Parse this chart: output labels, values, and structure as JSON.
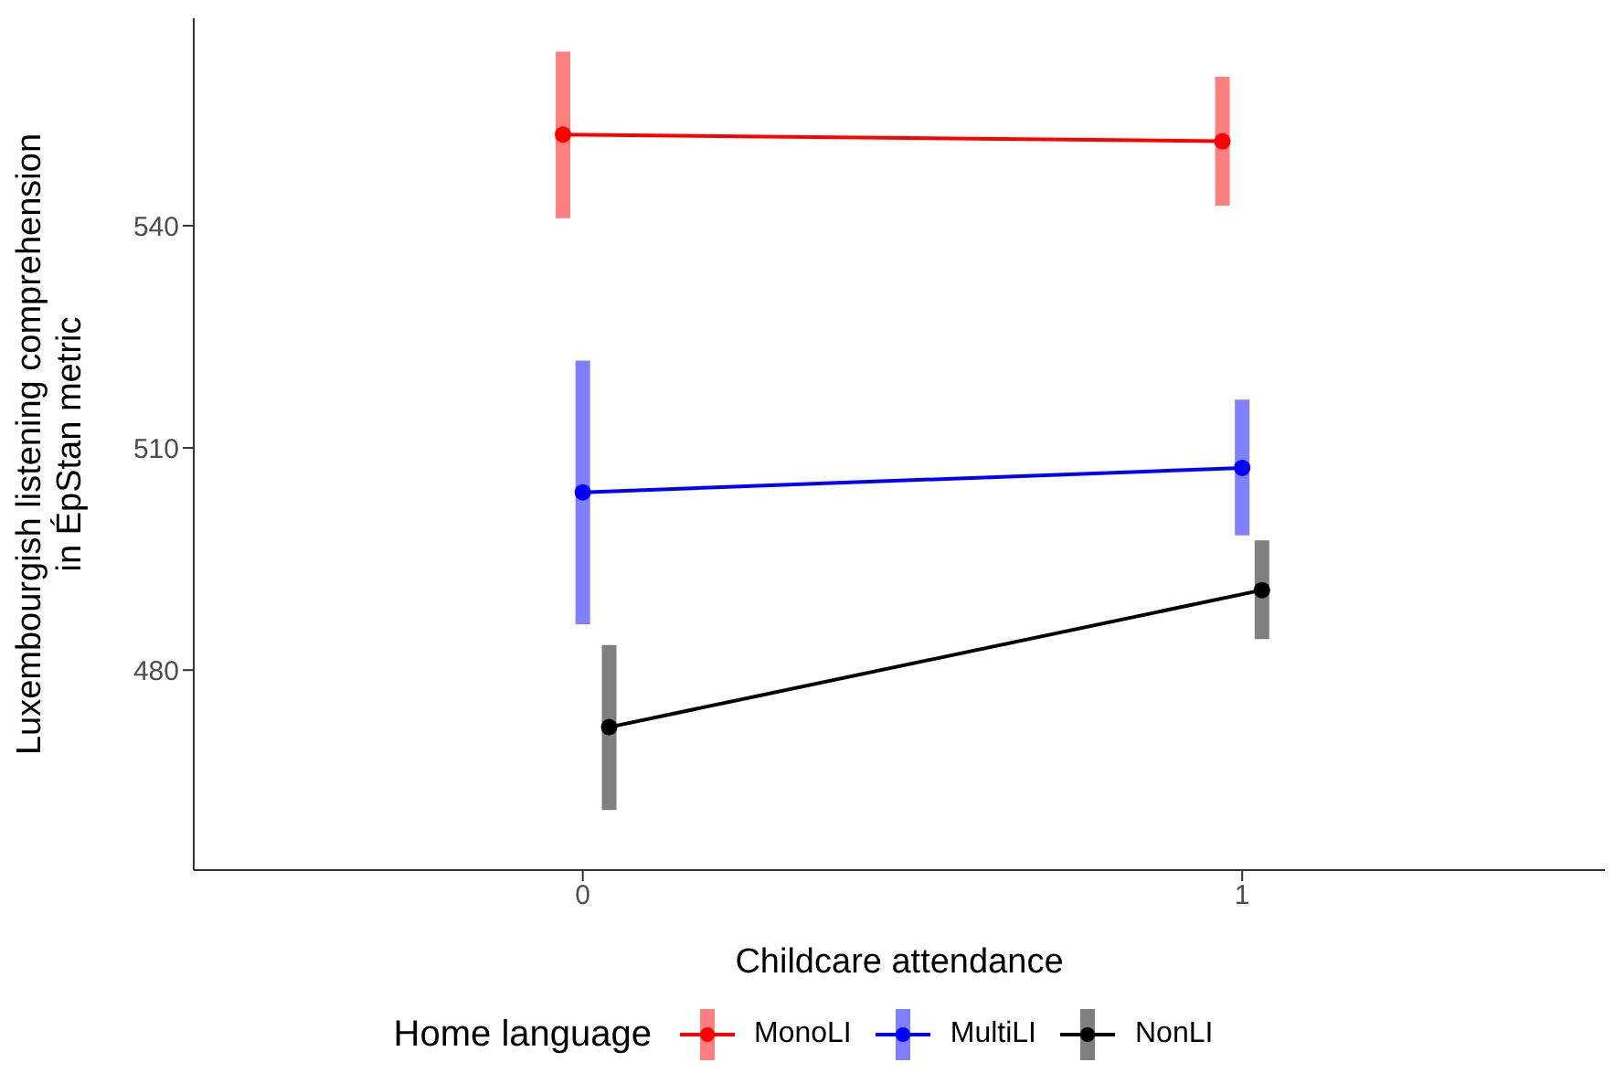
{
  "chart_data": {
    "type": "line",
    "xlabel": "Childcare attendance",
    "ylabel": "Luxembourgish listening comprehension\nin ÉpStan metric",
    "legend_title": "Home language",
    "xlim": [
      -0.59,
      1.55
    ],
    "ylim": [
      453,
      568
    ],
    "xticks": [
      0,
      1
    ],
    "yticks": [
      480,
      510,
      540
    ],
    "legend": "bottom",
    "marker": "circle",
    "line_style": "solid",
    "series": [
      {
        "name": "MonoLI",
        "color": "#ff0000",
        "x": [
          -0.03,
          0.97
        ],
        "values": [
          552.3,
          551.4
        ],
        "errors": [
          [
            541.0,
            563.5
          ],
          [
            542.7,
            560.1
          ]
        ]
      },
      {
        "name": "MultiLI",
        "color": "#0000ff",
        "x": [
          0,
          1
        ],
        "values": [
          504.0,
          507.3
        ],
        "errors": [
          [
            486.2,
            521.8
          ],
          [
            498.2,
            516.5
          ]
        ]
      },
      {
        "name": "NonLI",
        "color": "#000000",
        "x": [
          0.04,
          1.03
        ],
        "values": [
          472.3,
          490.8
        ],
        "errors": [
          [
            461.1,
            483.4
          ],
          [
            484.2,
            497.5
          ]
        ]
      }
    ]
  }
}
